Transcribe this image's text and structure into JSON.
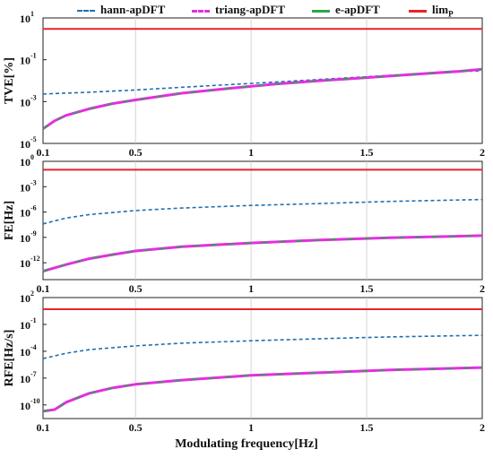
{
  "legend": [
    {
      "label": "hann-apDFT",
      "color": "#1f6fb0",
      "dash": "dashed"
    },
    {
      "label": "triang-apDFT",
      "color": "#e22fe0",
      "dash": "dashdot"
    },
    {
      "label": "e-apDFT",
      "color": "#2aa64a",
      "dash": "solid"
    },
    {
      "label": "lim",
      "sub": "P",
      "color": "#e8232a",
      "dash": "solid"
    }
  ],
  "xlabel": "Modulating frequency[Hz]",
  "chart_data": [
    {
      "type": "line",
      "ylabel": "TVE[%]",
      "yscale": "log",
      "ylim": [
        1e-05,
        10
      ],
      "yticks": [
        {
          "v": 1e-05,
          "label": "10",
          "exp": "-5"
        },
        {
          "v": 0.001,
          "label": "10",
          "exp": "-3"
        },
        {
          "v": 0.1,
          "label": "10",
          "exp": "-1"
        },
        {
          "v": 10,
          "label": "10",
          "exp": "1"
        }
      ],
      "xlim": [
        0.1,
        2
      ],
      "xticks": [
        {
          "v": 0.1,
          "label": "0.1"
        },
        {
          "v": 0.5,
          "label": "0.5"
        },
        {
          "v": 1,
          "label": "1"
        },
        {
          "v": 1.5,
          "label": "1.5"
        },
        {
          "v": 2,
          "label": "2"
        }
      ],
      "grid": "vertical",
      "series": [
        {
          "name": "hann-apDFT",
          "x": [
            0.1,
            0.3,
            0.5,
            0.7,
            0.9,
            1.1,
            1.3,
            1.5,
            1.7,
            1.9,
            2.0
          ],
          "y": [
            0.0023,
            0.0028,
            0.0036,
            0.0048,
            0.0064,
            0.0085,
            0.0115,
            0.0155,
            0.021,
            0.027,
            0.03
          ]
        },
        {
          "name": "triang-apDFT",
          "x": [
            0.1,
            0.15,
            0.2,
            0.3,
            0.4,
            0.5,
            0.7,
            0.9,
            1.1,
            1.3,
            1.5,
            1.7,
            1.9,
            2.0
          ],
          "y": [
            5e-05,
            0.00012,
            0.00022,
            0.00045,
            0.0008,
            0.0012,
            0.0025,
            0.0042,
            0.0068,
            0.01,
            0.014,
            0.02,
            0.028,
            0.035
          ]
        },
        {
          "name": "e-apDFT",
          "x": [
            0.1,
            0.15,
            0.2,
            0.3,
            0.4,
            0.5,
            0.7,
            0.9,
            1.1,
            1.3,
            1.5,
            1.7,
            1.9,
            2.0
          ],
          "y": [
            5e-05,
            0.00012,
            0.00022,
            0.00045,
            0.0008,
            0.0012,
            0.0025,
            0.0042,
            0.0068,
            0.01,
            0.014,
            0.02,
            0.028,
            0.035
          ]
        },
        {
          "name": "lim",
          "x": [
            0.1,
            2.0
          ],
          "y": [
            3,
            3
          ]
        }
      ]
    },
    {
      "type": "line",
      "ylabel": "FE[Hz]",
      "yscale": "log",
      "ylim": [
        1e-14,
        1
      ],
      "yticks": [
        {
          "v": 1,
          "label": "10",
          "exp": "0"
        },
        {
          "v": 0.001,
          "label": "10",
          "exp": "-3"
        },
        {
          "v": 1e-06,
          "label": "10",
          "exp": "-6"
        },
        {
          "v": 1e-09,
          "label": "10",
          "exp": "-9"
        },
        {
          "v": 1e-12,
          "label": "10",
          "exp": "-12"
        }
      ],
      "xlim": [
        0.1,
        2
      ],
      "xticks": [
        {
          "v": 0.1,
          "label": "0.1"
        },
        {
          "v": 0.5,
          "label": "0.5"
        },
        {
          "v": 1,
          "label": "1"
        },
        {
          "v": 1.5,
          "label": "1.5"
        },
        {
          "v": 2,
          "label": "2"
        }
      ],
      "grid": "vertical",
      "series": [
        {
          "name": "hann-apDFT",
          "x": [
            0.1,
            0.2,
            0.3,
            0.5,
            0.7,
            1.0,
            1.3,
            1.6,
            2.0
          ],
          "y": [
            4e-08,
            2e-07,
            5e-07,
            1.5e-06,
            3e-06,
            6e-06,
            1e-05,
            1.8e-05,
            3e-05
          ]
        },
        {
          "name": "triang-apDFT",
          "x": [
            0.1,
            0.2,
            0.3,
            0.4,
            0.5,
            0.7,
            1.0,
            1.3,
            1.6,
            2.0
          ],
          "y": [
            1e-13,
            6e-13,
            3e-12,
            9e-12,
            2.5e-11,
            8e-11,
            2.2e-10,
            5e-10,
            9e-10,
            1.6e-09
          ]
        },
        {
          "name": "e-apDFT",
          "x": [
            0.1,
            0.2,
            0.3,
            0.4,
            0.5,
            0.7,
            1.0,
            1.3,
            1.6,
            2.0
          ],
          "y": [
            1e-13,
            6e-13,
            3e-12,
            9e-12,
            2.5e-11,
            8e-11,
            2.2e-10,
            5e-10,
            9e-10,
            1.6e-09
          ]
        },
        {
          "name": "lim",
          "x": [
            0.1,
            2.0
          ],
          "y": [
            0.1,
            0.1
          ]
        }
      ]
    },
    {
      "type": "line",
      "ylabel": "RFE[Hz/s]",
      "yscale": "log",
      "ylim": [
        3e-12,
        100
      ],
      "yticks": [
        {
          "v": 100,
          "label": "10",
          "exp": "2"
        },
        {
          "v": 0.1,
          "label": "10",
          "exp": "-1"
        },
        {
          "v": 0.0001,
          "label": "10",
          "exp": "-4"
        },
        {
          "v": 1e-07,
          "label": "10",
          "exp": "-7"
        },
        {
          "v": 1e-10,
          "label": "10",
          "exp": "-10"
        }
      ],
      "xlim": [
        0.1,
        2
      ],
      "xticks": [
        {
          "v": 0.1,
          "label": "0.1"
        },
        {
          "v": 0.5,
          "label": "0.5"
        },
        {
          "v": 1,
          "label": "1"
        },
        {
          "v": 1.5,
          "label": "1.5"
        },
        {
          "v": 2,
          "label": "2"
        }
      ],
      "grid": "vertical",
      "series": [
        {
          "name": "hann-apDFT",
          "x": [
            0.1,
            0.2,
            0.3,
            0.5,
            0.7,
            1.0,
            1.3,
            1.6,
            2.0
          ],
          "y": [
            1.5e-05,
            6e-05,
            0.00015,
            0.0004,
            0.0008,
            0.0015,
            0.0025,
            0.004,
            0.006
          ]
        },
        {
          "name": "triang-apDFT",
          "x": [
            0.1,
            0.15,
            0.2,
            0.3,
            0.4,
            0.5,
            0.7,
            1.0,
            1.3,
            1.6,
            2.0
          ],
          "y": [
            2e-11,
            3e-11,
            2e-10,
            2e-09,
            8e-09,
            2e-08,
            6e-08,
            2e-07,
            4e-07,
            8e-07,
            1.5e-06
          ]
        },
        {
          "name": "e-apDFT",
          "x": [
            0.1,
            0.15,
            0.2,
            0.3,
            0.4,
            0.5,
            0.7,
            1.0,
            1.3,
            1.6,
            2.0
          ],
          "y": [
            2e-11,
            3e-11,
            2e-10,
            2e-09,
            8e-09,
            2e-08,
            6e-08,
            2e-07,
            4e-07,
            8e-07,
            1.5e-06
          ]
        },
        {
          "name": "lim",
          "x": [
            0.1,
            2.0
          ],
          "y": [
            5,
            5
          ]
        }
      ]
    }
  ]
}
